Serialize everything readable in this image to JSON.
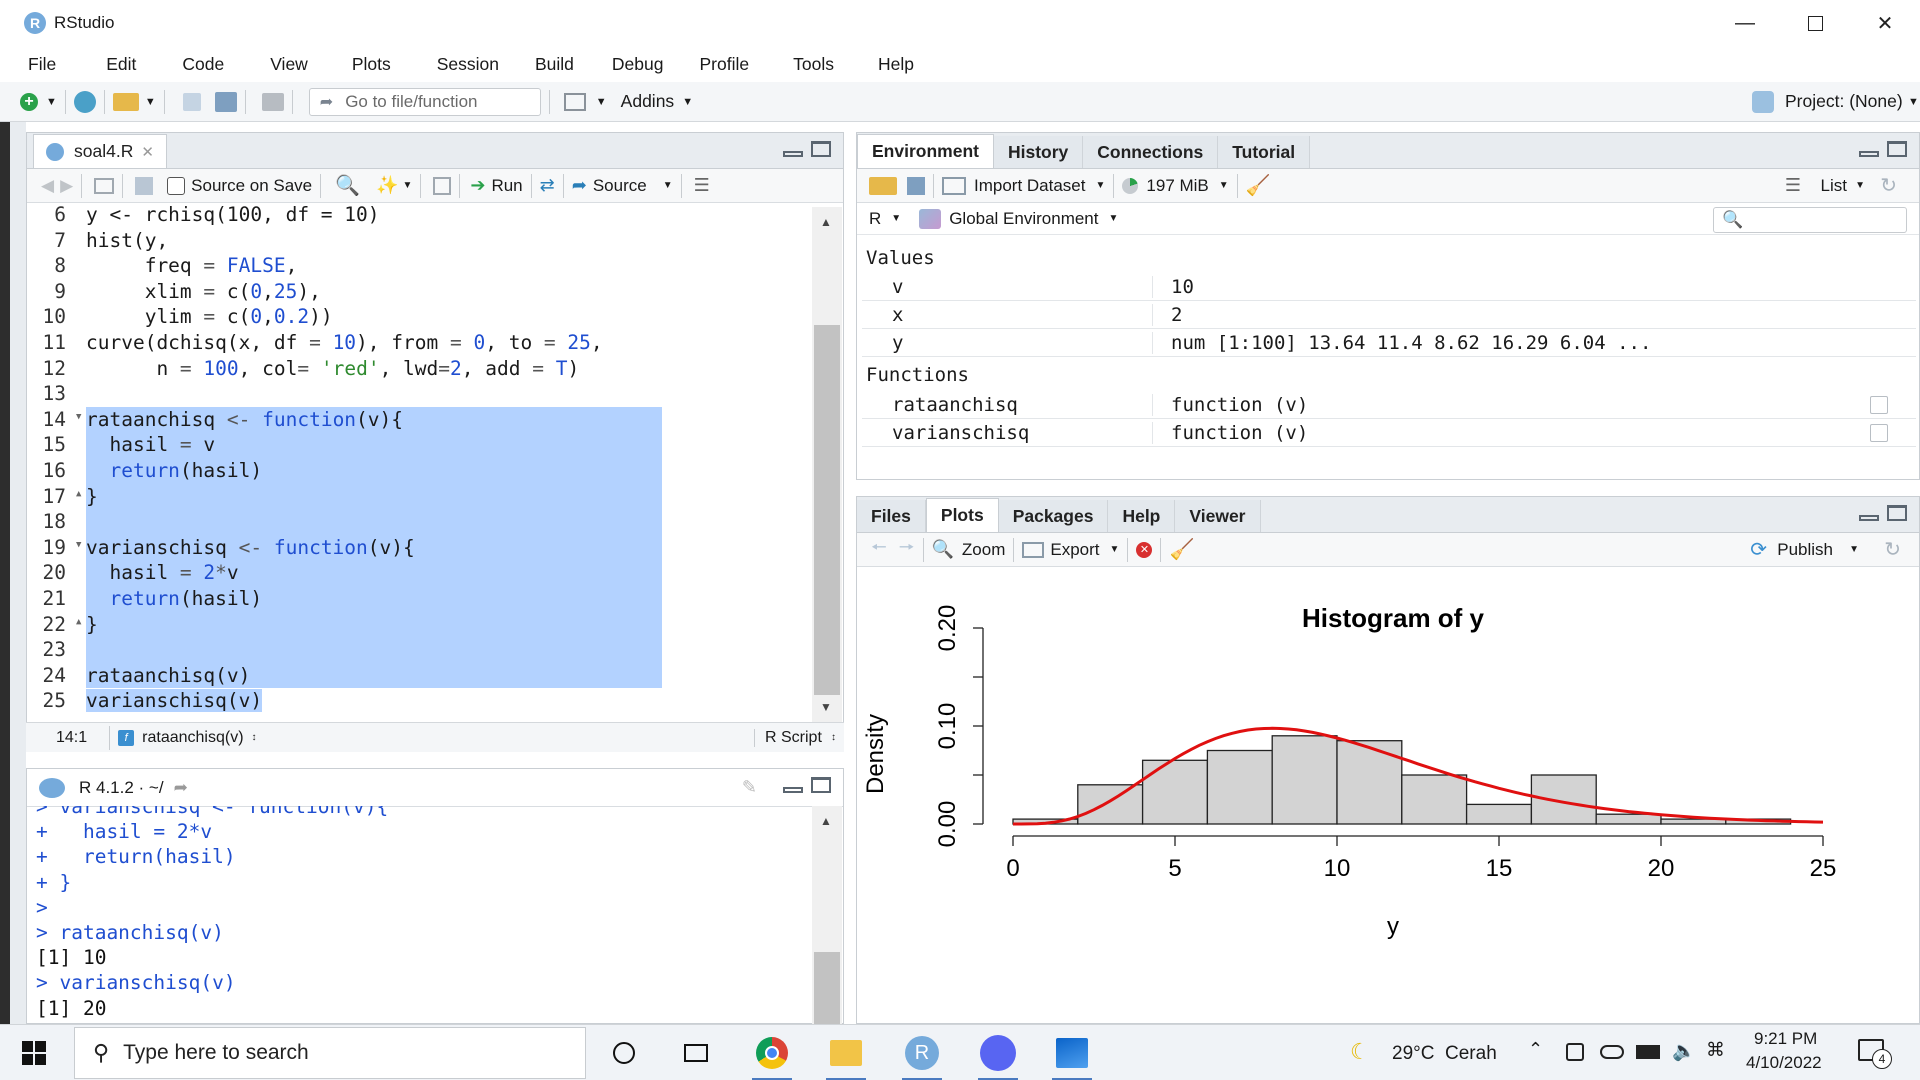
{
  "window": {
    "title": "RStudio"
  },
  "menu": [
    "File",
    "Edit",
    "Code",
    "View",
    "Plots",
    "Session",
    "Build",
    "Debug",
    "Profile",
    "Tools",
    "Help"
  ],
  "toolbar": {
    "goto_placeholder": "Go to file/function",
    "addins": "Addins",
    "project": "Project: (None)"
  },
  "editor": {
    "tab_name": "soal4.R",
    "source_on_save": "Source on Save",
    "run": "Run",
    "source": "Source",
    "status_pos": "14:1",
    "status_fn": "rataanchisq(v)",
    "status_type": "R Script",
    "lines": [
      {
        "n": "6",
        "sel": false,
        "tokens": [
          [
            "y <- rchisq(100, df = 10)",
            "plain"
          ]
        ]
      },
      {
        "n": "7",
        "sel": false,
        "tokens": [
          [
            "hist(y,",
            "plain"
          ]
        ]
      },
      {
        "n": "8",
        "sel": false,
        "tokens": [
          [
            "     freq ",
            "plain"
          ],
          [
            "=",
            "op"
          ],
          [
            " ",
            "plain"
          ],
          [
            "FALSE",
            "kw"
          ],
          [
            ",",
            "plain"
          ]
        ]
      },
      {
        "n": "9",
        "sel": false,
        "tokens": [
          [
            "     xlim ",
            "plain"
          ],
          [
            "=",
            "op"
          ],
          [
            " c(",
            "plain"
          ],
          [
            "0",
            "num"
          ],
          [
            ",",
            "plain"
          ],
          [
            "25",
            "num"
          ],
          [
            "),",
            "plain"
          ]
        ]
      },
      {
        "n": "10",
        "sel": false,
        "tokens": [
          [
            "     ylim ",
            "plain"
          ],
          [
            "=",
            "op"
          ],
          [
            " c(",
            "plain"
          ],
          [
            "0",
            "num"
          ],
          [
            ",",
            "plain"
          ],
          [
            "0.2",
            "num"
          ],
          [
            "))",
            "plain"
          ]
        ]
      },
      {
        "n": "11",
        "sel": false,
        "tokens": [
          [
            "curve(dchisq(x, df ",
            "plain"
          ],
          [
            "=",
            "op"
          ],
          [
            " ",
            "plain"
          ],
          [
            "10",
            "num"
          ],
          [
            "), from ",
            "plain"
          ],
          [
            "=",
            "op"
          ],
          [
            " ",
            "plain"
          ],
          [
            "0",
            "num"
          ],
          [
            ", to ",
            "plain"
          ],
          [
            "=",
            "op"
          ],
          [
            " ",
            "plain"
          ],
          [
            "25",
            "num"
          ],
          [
            ",",
            "plain"
          ]
        ]
      },
      {
        "n": "12",
        "sel": false,
        "tokens": [
          [
            "      n ",
            "plain"
          ],
          [
            "=",
            "op"
          ],
          [
            " ",
            "plain"
          ],
          [
            "100",
            "num"
          ],
          [
            ", col",
            "plain"
          ],
          [
            "=",
            "op"
          ],
          [
            " ",
            "plain"
          ],
          [
            "'red'",
            "str"
          ],
          [
            ", lwd",
            "plain"
          ],
          [
            "=",
            "op"
          ],
          [
            "2",
            "num"
          ],
          [
            ", add ",
            "plain"
          ],
          [
            "=",
            "op"
          ],
          [
            " ",
            "plain"
          ],
          [
            "T",
            "kw"
          ],
          [
            ")",
            "plain"
          ]
        ]
      },
      {
        "n": "13",
        "sel": false,
        "tokens": [
          [
            "",
            "plain"
          ]
        ]
      },
      {
        "n": "14",
        "fold": true,
        "sel": true,
        "tokens": [
          [
            "rataanchisq ",
            "plain"
          ],
          [
            "<-",
            "op"
          ],
          [
            " ",
            "plain"
          ],
          [
            "function",
            "kw"
          ],
          [
            "(v){",
            "plain"
          ]
        ]
      },
      {
        "n": "15",
        "sel": true,
        "tokens": [
          [
            "  hasil ",
            "plain"
          ],
          [
            "=",
            "op"
          ],
          [
            " v",
            "plain"
          ]
        ]
      },
      {
        "n": "16",
        "sel": true,
        "tokens": [
          [
            "  ",
            "plain"
          ],
          [
            "return",
            "kw"
          ],
          [
            "(hasil)",
            "plain"
          ]
        ]
      },
      {
        "n": "17",
        "fold": true,
        "sel": true,
        "tokens": [
          [
            "}",
            "plain"
          ]
        ]
      },
      {
        "n": "18",
        "sel": true,
        "tokens": [
          [
            "",
            "plain"
          ]
        ]
      },
      {
        "n": "19",
        "fold": true,
        "sel": true,
        "tokens": [
          [
            "varianschisq ",
            "plain"
          ],
          [
            "<-",
            "op"
          ],
          [
            " ",
            "plain"
          ],
          [
            "function",
            "kw"
          ],
          [
            "(v){",
            "plain"
          ]
        ]
      },
      {
        "n": "20",
        "sel": true,
        "tokens": [
          [
            "  hasil ",
            "plain"
          ],
          [
            "=",
            "op"
          ],
          [
            " ",
            "plain"
          ],
          [
            "2",
            "num"
          ],
          [
            "*",
            "op"
          ],
          [
            "v",
            "plain"
          ]
        ]
      },
      {
        "n": "21",
        "sel": true,
        "tokens": [
          [
            "  ",
            "plain"
          ],
          [
            "return",
            "kw"
          ],
          [
            "(hasil)",
            "plain"
          ]
        ]
      },
      {
        "n": "22",
        "fold": true,
        "sel": true,
        "tokens": [
          [
            "}",
            "plain"
          ]
        ]
      },
      {
        "n": "23",
        "sel": true,
        "tokens": [
          [
            "",
            "plain"
          ]
        ]
      },
      {
        "n": "24",
        "sel": true,
        "tokens": [
          [
            "rataanchisq(v)",
            "plain"
          ]
        ]
      },
      {
        "n": "25",
        "sel": "partial",
        "tokens": [
          [
            "varianschisq(v)",
            "plain"
          ]
        ]
      }
    ]
  },
  "console": {
    "header": "R 4.1.2 · ~/",
    "lines": [
      {
        "t": "> varianschisq <- function(v){",
        "out": false
      },
      {
        "t": "+   hasil = 2*v",
        "out": false
      },
      {
        "t": "+   return(hasil)",
        "out": false
      },
      {
        "t": "+ }",
        "out": false
      },
      {
        "t": ">",
        "out": false
      },
      {
        "t": "> rataanchisq(v)",
        "out": false
      },
      {
        "t": "[1] 10",
        "out": true
      },
      {
        "t": "> varianschisq(v)",
        "out": false
      },
      {
        "t": "[1] 20",
        "out": true
      }
    ]
  },
  "env": {
    "tabs": [
      "Environment",
      "History",
      "Connections",
      "Tutorial"
    ],
    "import_dataset": "Import Dataset",
    "memory": "197 MiB",
    "list": "List",
    "lang": "R",
    "scope": "Global Environment",
    "values_header": "Values",
    "values": [
      {
        "name": "v",
        "value": "10"
      },
      {
        "name": "x",
        "value": "2"
      },
      {
        "name": "y",
        "value": "num [1:100] 13.64 11.4 8.62 16.29 6.04 ..."
      }
    ],
    "functions_header": "Functions",
    "functions": [
      {
        "name": "rataanchisq",
        "value": "function (v)"
      },
      {
        "name": "varianschisq",
        "value": "function (v)"
      }
    ]
  },
  "files": {
    "tabs": [
      "Files",
      "Plots",
      "Packages",
      "Help",
      "Viewer"
    ],
    "zoom": "Zoom",
    "export": "Export",
    "publish": "Publish"
  },
  "chart_data": {
    "type": "bar",
    "title": "Histogram of y",
    "xlabel": "y",
    "ylabel": "Density",
    "xlim": [
      0,
      25
    ],
    "ylim": [
      0,
      0.2
    ],
    "x_ticks": [
      "0",
      "5",
      "10",
      "15",
      "20",
      "25"
    ],
    "y_ticks": [
      "0.00",
      "0.10",
      "0.20"
    ],
    "bins": [
      {
        "from": 0,
        "to": 2,
        "density": 0.005
      },
      {
        "from": 2,
        "to": 4,
        "density": 0.04
      },
      {
        "from": 4,
        "to": 6,
        "density": 0.065
      },
      {
        "from": 6,
        "to": 8,
        "density": 0.075
      },
      {
        "from": 8,
        "to": 10,
        "density": 0.09
      },
      {
        "from": 10,
        "to": 12,
        "density": 0.085
      },
      {
        "from": 12,
        "to": 14,
        "density": 0.05
      },
      {
        "from": 14,
        "to": 16,
        "density": 0.02
      },
      {
        "from": 16,
        "to": 18,
        "density": 0.05
      },
      {
        "from": 18,
        "to": 20,
        "density": 0.01
      },
      {
        "from": 20,
        "to": 22,
        "density": 0.005
      },
      {
        "from": 22,
        "to": 24,
        "density": 0.005
      }
    ],
    "curve": {
      "name": "dchisq(x, df = 10)",
      "color": "#e01010",
      "df": 10,
      "from": 0,
      "to": 25
    }
  },
  "taskbar": {
    "search_placeholder": "Type here to search",
    "weather": "29°C  Cerah",
    "time": "9:21 PM",
    "date": "4/10/2022",
    "notifications": "4"
  }
}
